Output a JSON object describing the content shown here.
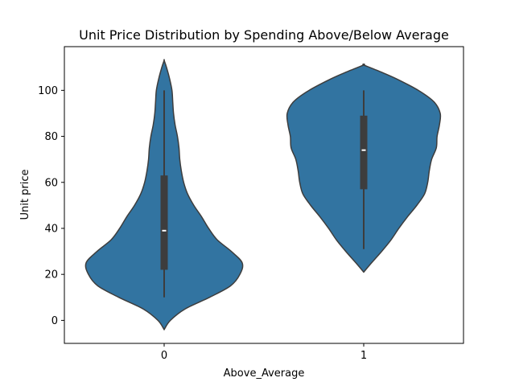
{
  "chart_data": {
    "type": "violin",
    "title": "Unit Price Distribution by Spending Above/Below Average",
    "xlabel": "Above_Average",
    "ylabel": "Unit price",
    "categories": [
      "0",
      "1"
    ],
    "ylim": [
      -10,
      119
    ],
    "yticks": [
      0,
      20,
      40,
      60,
      80,
      100
    ],
    "grid": false,
    "legend": "none",
    "colors": {
      "fill": "#3274a1",
      "edge": "#3d3d3d",
      "box": "#3d3d3d",
      "median": "#ffffff"
    },
    "violins": [
      {
        "category": "0",
        "min": 10,
        "q1": 22,
        "median": 39,
        "q3": 63,
        "max": 100,
        "density": [
          [
            -4,
            0.0
          ],
          [
            0,
            0.08
          ],
          [
            5,
            0.27
          ],
          [
            10,
            0.58
          ],
          [
            15,
            0.85
          ],
          [
            20,
            0.97
          ],
          [
            25,
            1.0
          ],
          [
            30,
            0.86
          ],
          [
            35,
            0.68
          ],
          [
            40,
            0.57
          ],
          [
            45,
            0.48
          ],
          [
            50,
            0.38
          ],
          [
            55,
            0.3
          ],
          [
            60,
            0.25
          ],
          [
            65,
            0.22
          ],
          [
            70,
            0.2
          ],
          [
            75,
            0.19
          ],
          [
            80,
            0.17
          ],
          [
            85,
            0.14
          ],
          [
            90,
            0.12
          ],
          [
            95,
            0.11
          ],
          [
            100,
            0.1
          ],
          [
            105,
            0.07
          ],
          [
            110,
            0.03
          ],
          [
            113,
            0.0
          ]
        ]
      },
      {
        "category": "1",
        "min": 31,
        "q1": 57,
        "median": 74,
        "q3": 89,
        "max": 100,
        "density": [
          [
            21,
            0.0
          ],
          [
            25,
            0.1
          ],
          [
            30,
            0.23
          ],
          [
            35,
            0.35
          ],
          [
            40,
            0.45
          ],
          [
            45,
            0.56
          ],
          [
            50,
            0.68
          ],
          [
            55,
            0.78
          ],
          [
            60,
            0.82
          ],
          [
            65,
            0.84
          ],
          [
            70,
            0.87
          ],
          [
            75,
            0.93
          ],
          [
            80,
            0.94
          ],
          [
            85,
            0.97
          ],
          [
            90,
            0.98
          ],
          [
            95,
            0.9
          ],
          [
            100,
            0.7
          ],
          [
            105,
            0.42
          ],
          [
            108,
            0.22
          ],
          [
            111,
            0.0
          ]
        ]
      }
    ]
  }
}
